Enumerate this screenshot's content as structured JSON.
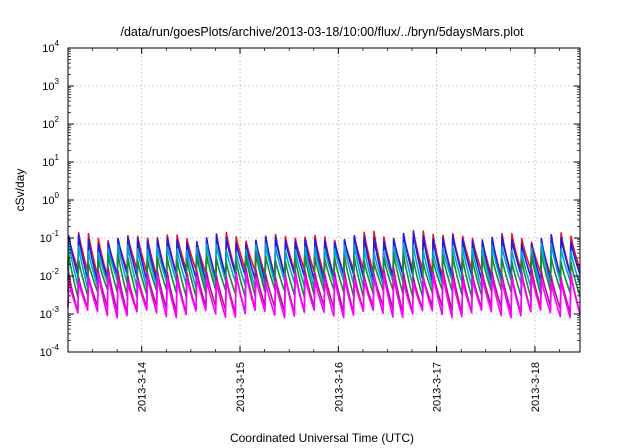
{
  "chart_data": {
    "type": "line",
    "title": "/data/run/goesPlots/archive/2013-03-18/10:00/flux/../bryn/5daysMars.plot",
    "xlabel": "Coordinated Universal Time (UTC)",
    "ylabel": "cSv/day",
    "y_scale": "log",
    "ylim": [
      0.0001,
      10000
    ],
    "xlim": [
      "2013-03-13 06:00",
      "2013-03-18 11:00"
    ],
    "x_tick_labels": [
      "2013-3-14",
      "2013-3-15",
      "2013-3-16",
      "2013-3-17",
      "2013-3-18"
    ],
    "y_tick_labels": [
      {
        "base": "10",
        "exp": "-4"
      },
      {
        "base": "10",
        "exp": "-3"
      },
      {
        "base": "10",
        "exp": "-2"
      },
      {
        "base": "10",
        "exp": "-1"
      },
      {
        "base": "10",
        "exp": "0"
      },
      {
        "base": "10",
        "exp": "1"
      },
      {
        "base": "10",
        "exp": "2"
      },
      {
        "base": "10",
        "exp": "3"
      },
      {
        "base": "10",
        "exp": "4"
      }
    ],
    "grid": true,
    "legend": "none",
    "pattern": "sawtooth",
    "cycles": 52,
    "series": [
      {
        "color": "#e8151b",
        "peak": 0.105,
        "trough": 0.012
      },
      {
        "color": "#1c1cf0",
        "peak": 0.09,
        "trough": 0.009
      },
      {
        "color": "#00a8c8",
        "peak": 0.055,
        "trough": 0.006
      },
      {
        "color": "#1a8a3a",
        "peak": 0.03,
        "trough": 0.0035
      },
      {
        "color": "#b0148c",
        "peak": 0.012,
        "trough": 0.0013
      },
      {
        "color": "#ff00ff",
        "peak": 0.009,
        "trough": 0.001
      }
    ]
  }
}
